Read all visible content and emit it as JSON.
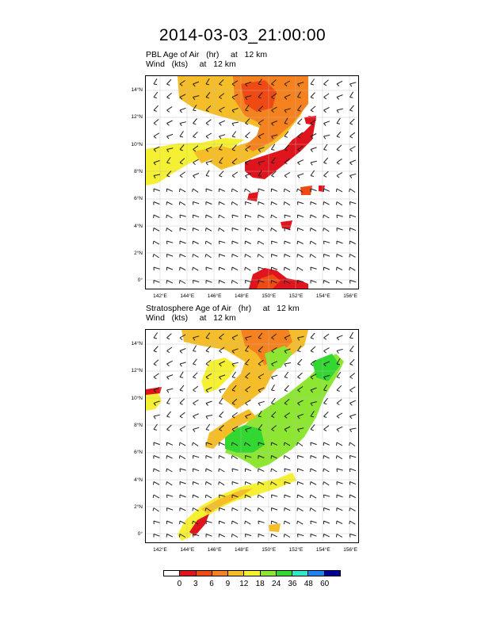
{
  "title": "2014-03-03_21:00:00",
  "panels": [
    {
      "line1": "PBL Age of Air   (hr)     at   12 km",
      "line2": "Wind   (kts)     at   12 km",
      "lat_labels": [
        "14°N",
        "12°N",
        "10°N",
        "8°N",
        "6°N",
        "4°N",
        "2°N",
        "0°"
      ],
      "lon_labels": [
        "142°E",
        "144°E",
        "146°E",
        "148°E",
        "150°E",
        "152°E",
        "154°E",
        "156°E"
      ]
    },
    {
      "line1": "Stratosphere Age of Air   (hr)     at   12 km",
      "line2": "Wind   (kts)     at   12 km",
      "lat_labels": [
        "14°N",
        "12°N",
        "10°N",
        "8°N",
        "6°N",
        "4°N",
        "2°N",
        "0°"
      ],
      "lon_labels": [
        "142°E",
        "144°E",
        "146°E",
        "148°E",
        "150°E",
        "152°E",
        "154°E",
        "156°E"
      ]
    }
  ],
  "colorbar": {
    "labels": [
      "0",
      "3",
      "6",
      "9",
      "12",
      "18",
      "24",
      "36",
      "48",
      "60"
    ],
    "colors": [
      "#ffffff",
      "#e0141c",
      "#f04a14",
      "#f5821e",
      "#f5be28",
      "#f5f032",
      "#8ce632",
      "#32d732",
      "#32e6c8",
      "#1e82f0",
      "#000096"
    ]
  }
}
